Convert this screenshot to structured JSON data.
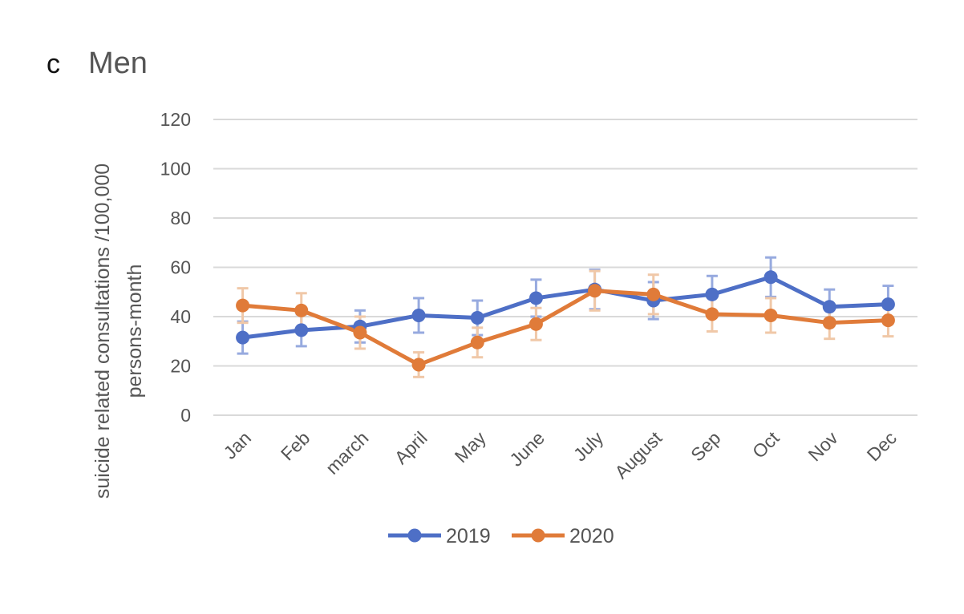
{
  "figure": {
    "panel_letter": "c",
    "panel_title": "Men"
  },
  "colors": {
    "series_2019": "#4e6fc6",
    "series_2019_error": "#97aadf",
    "series_2020": "#e07b39",
    "series_2020_error": "#f0c8a8",
    "grid": "#d9d9d9",
    "text": "#555555"
  },
  "chart_data": {
    "type": "line",
    "title": "Men",
    "xlabel": "",
    "ylabel": "suicide related consultations /100,000 persons-month",
    "ylabel_lines": [
      "suicide related consultations /100,000",
      "persons-month"
    ],
    "ylim": [
      0,
      120
    ],
    "yticks": [
      0,
      20,
      40,
      60,
      80,
      100,
      120
    ],
    "grid": true,
    "legend_position": "bottom",
    "categories": [
      "Jan",
      "Feb",
      "march",
      "April",
      "May",
      "June",
      "July",
      "August",
      "Sep",
      "Oct",
      "Nov",
      "Dec"
    ],
    "series": [
      {
        "name": "2019",
        "values": [
          31.5,
          34.5,
          36,
          40.5,
          39.5,
          47.5,
          51,
          46.5,
          49,
          56,
          44,
          45
        ],
        "error": [
          6.5,
          6.5,
          6.5,
          7,
          7,
          7.5,
          8,
          7.5,
          7.5,
          8,
          7,
          7.5
        ]
      },
      {
        "name": "2020",
        "values": [
          44.5,
          42.5,
          33.5,
          20.5,
          29.5,
          37,
          50.5,
          49,
          41,
          40.5,
          37.5,
          38.5
        ],
        "error": [
          7,
          7,
          6.5,
          5,
          6,
          6.5,
          8,
          8,
          7,
          7,
          6.5,
          6.5
        ]
      }
    ]
  }
}
